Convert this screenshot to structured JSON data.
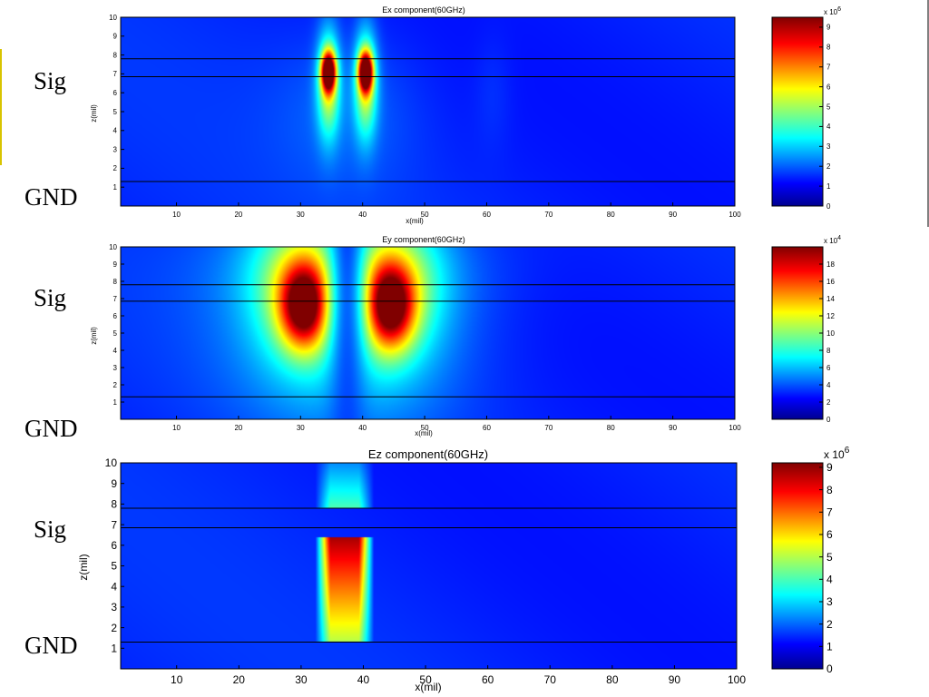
{
  "chart_data": [
    {
      "type": "heatmap",
      "title": "Ex component(60GHz)",
      "xlabel": "x(mil)",
      "ylabel": "z(mil)",
      "xlim": [
        1,
        100
      ],
      "ylim": [
        0,
        10
      ],
      "x_ticks": [
        10,
        20,
        30,
        40,
        50,
        60,
        70,
        80,
        90,
        100
      ],
      "y_ticks": [
        1,
        2,
        3,
        4,
        5,
        6,
        7,
        8,
        9,
        10
      ],
      "colorbar": {
        "exponent_label": "x 10",
        "exponent": "6",
        "range": [
          0,
          9.5
        ],
        "ticks": [
          "0",
          "1",
          "2",
          "3",
          "4",
          "5",
          "6",
          "7",
          "8",
          "9"
        ],
        "colormap": "jet"
      },
      "layer_lines_z": [
        7.8,
        6.85,
        1.3
      ],
      "side_labels": {
        "sig": "Sig",
        "gnd": "GND"
      },
      "hotspots": [
        {
          "x": 34.5,
          "z": 7.1,
          "sx": 1.1,
          "sz": 1.0,
          "amp": 9.5
        },
        {
          "x": 40.5,
          "z": 7.1,
          "sx": 1.1,
          "sz": 1.0,
          "amp": 9.5
        },
        {
          "x": 34.5,
          "z": 6.5,
          "sx": 1.8,
          "sz": 2.8,
          "amp": 4.5
        },
        {
          "x": 40.5,
          "z": 6.5,
          "sx": 1.8,
          "sz": 2.8,
          "amp": 4.5
        },
        {
          "x": 37.5,
          "z": 5.0,
          "sx": 11.0,
          "sz": 4.0,
          "amp": 0.7
        },
        {
          "x": 61.0,
          "z": 6.0,
          "sx": 3.0,
          "sz": 3.0,
          "amp": 0.3
        }
      ]
    },
    {
      "type": "heatmap",
      "title": "Ey component(60GHz)",
      "xlabel": "x(mil)",
      "ylabel": "z(mil)",
      "xlim": [
        1,
        100
      ],
      "ylim": [
        0,
        10
      ],
      "x_ticks": [
        10,
        20,
        30,
        40,
        50,
        60,
        70,
        80,
        90,
        100
      ],
      "y_ticks": [
        1,
        2,
        3,
        4,
        5,
        6,
        7,
        8,
        9,
        10
      ],
      "colorbar": {
        "exponent_label": "x 10",
        "exponent": "4",
        "range": [
          0,
          20
        ],
        "ticks": [
          "0",
          "2",
          "4",
          "6",
          "8",
          "10",
          "12",
          "14",
          "16",
          "18"
        ],
        "colormap": "jet"
      },
      "layer_lines_z": [
        7.8,
        6.85,
        1.3
      ],
      "side_labels": {
        "sig": "Sig",
        "gnd": "GND"
      },
      "hotspots": [
        {
          "x": 30.5,
          "z": 6.5,
          "sx": 3.8,
          "sz": 2.4,
          "amp": 14.0
        },
        {
          "x": 44.5,
          "z": 6.5,
          "sx": 3.8,
          "sz": 2.4,
          "amp": 14.0
        },
        {
          "x": 29.5,
          "z": 7.8,
          "sx": 7.0,
          "sz": 4.0,
          "amp": 6.0
        },
        {
          "x": 45.5,
          "z": 7.8,
          "sx": 7.0,
          "sz": 4.0,
          "amp": 6.0
        },
        {
          "x": 37.5,
          "z": 6.0,
          "sx": 17.0,
          "sz": 6.0,
          "amp": 5.5
        },
        {
          "x": 37.5,
          "z": 9.0,
          "sx": 20.0,
          "sz": 3.0,
          "amp": 2.0
        }
      ],
      "notch": {
        "x": 37.5,
        "sx": 3.0,
        "depth": 0.85
      }
    },
    {
      "type": "heatmap",
      "title": "Ez component(60GHz)",
      "xlabel": "x(mil)",
      "ylabel": "z(mil)",
      "xlim": [
        1,
        100
      ],
      "ylim": [
        0,
        10
      ],
      "x_ticks": [
        10,
        20,
        30,
        40,
        50,
        60,
        70,
        80,
        90,
        100
      ],
      "y_ticks": [
        1,
        2,
        3,
        4,
        5,
        6,
        7,
        8,
        9,
        10
      ],
      "colorbar": {
        "exponent_label": "x 10",
        "exponent": "6",
        "range": [
          0,
          9.2
        ],
        "ticks": [
          "0",
          "1",
          "2",
          "3",
          "4",
          "5",
          "6",
          "7",
          "8",
          "9"
        ],
        "colormap": "jet"
      },
      "layer_lines_z": [
        7.8,
        6.85,
        1.3
      ],
      "side_labels": {
        "sig": "Sig",
        "gnd": "GND"
      },
      "bands": [
        {
          "x0": 33.5,
          "x1": 40.5,
          "z0": 1.3,
          "z1": 6.4,
          "peak_z": 6.4,
          "top": 8.8,
          "bottom": 4.2
        },
        {
          "x0": 33.5,
          "x1": 40.5,
          "z0": 7.8,
          "z1": 10.0,
          "peak_z": 7.8,
          "top": 3.2,
          "bottom": 1.2
        }
      ]
    }
  ]
}
